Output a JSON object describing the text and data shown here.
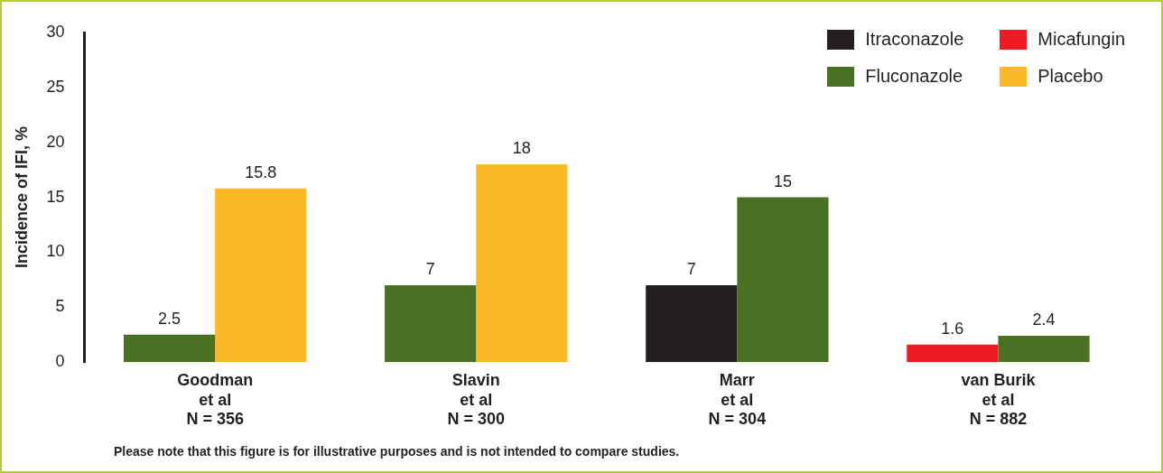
{
  "chart_data": {
    "type": "bar",
    "ylabel": "Incidence of IFI, %",
    "categories": [
      "Goodman\net al\nN = 356",
      "Slavin\net al\nN = 300",
      "Marr\net al\nN = 304",
      "van Burik\net al\nN = 882"
    ],
    "series": [
      {
        "name": "Itraconazole",
        "color": "#231f20",
        "values": [
          null,
          null,
          7,
          null
        ]
      },
      {
        "name": "Micafungin",
        "color": "#ed1c24",
        "values": [
          null,
          null,
          null,
          1.6
        ]
      },
      {
        "name": "Fluconazole",
        "color": "#4a7023",
        "values": [
          2.5,
          7,
          15,
          2.4
        ]
      },
      {
        "name": "Placebo",
        "color": "#fbb829",
        "values": [
          15.8,
          18,
          null,
          null
        ]
      }
    ],
    "ylim": [
      0,
      30
    ],
    "yticks": [
      0,
      5,
      10,
      15,
      20,
      25,
      30
    ],
    "grid": false,
    "legend": "top right",
    "data_labels": true,
    "annotations": [
      "Please note that this figure is for illustrative purposes and is not intended to compare studies."
    ]
  }
}
